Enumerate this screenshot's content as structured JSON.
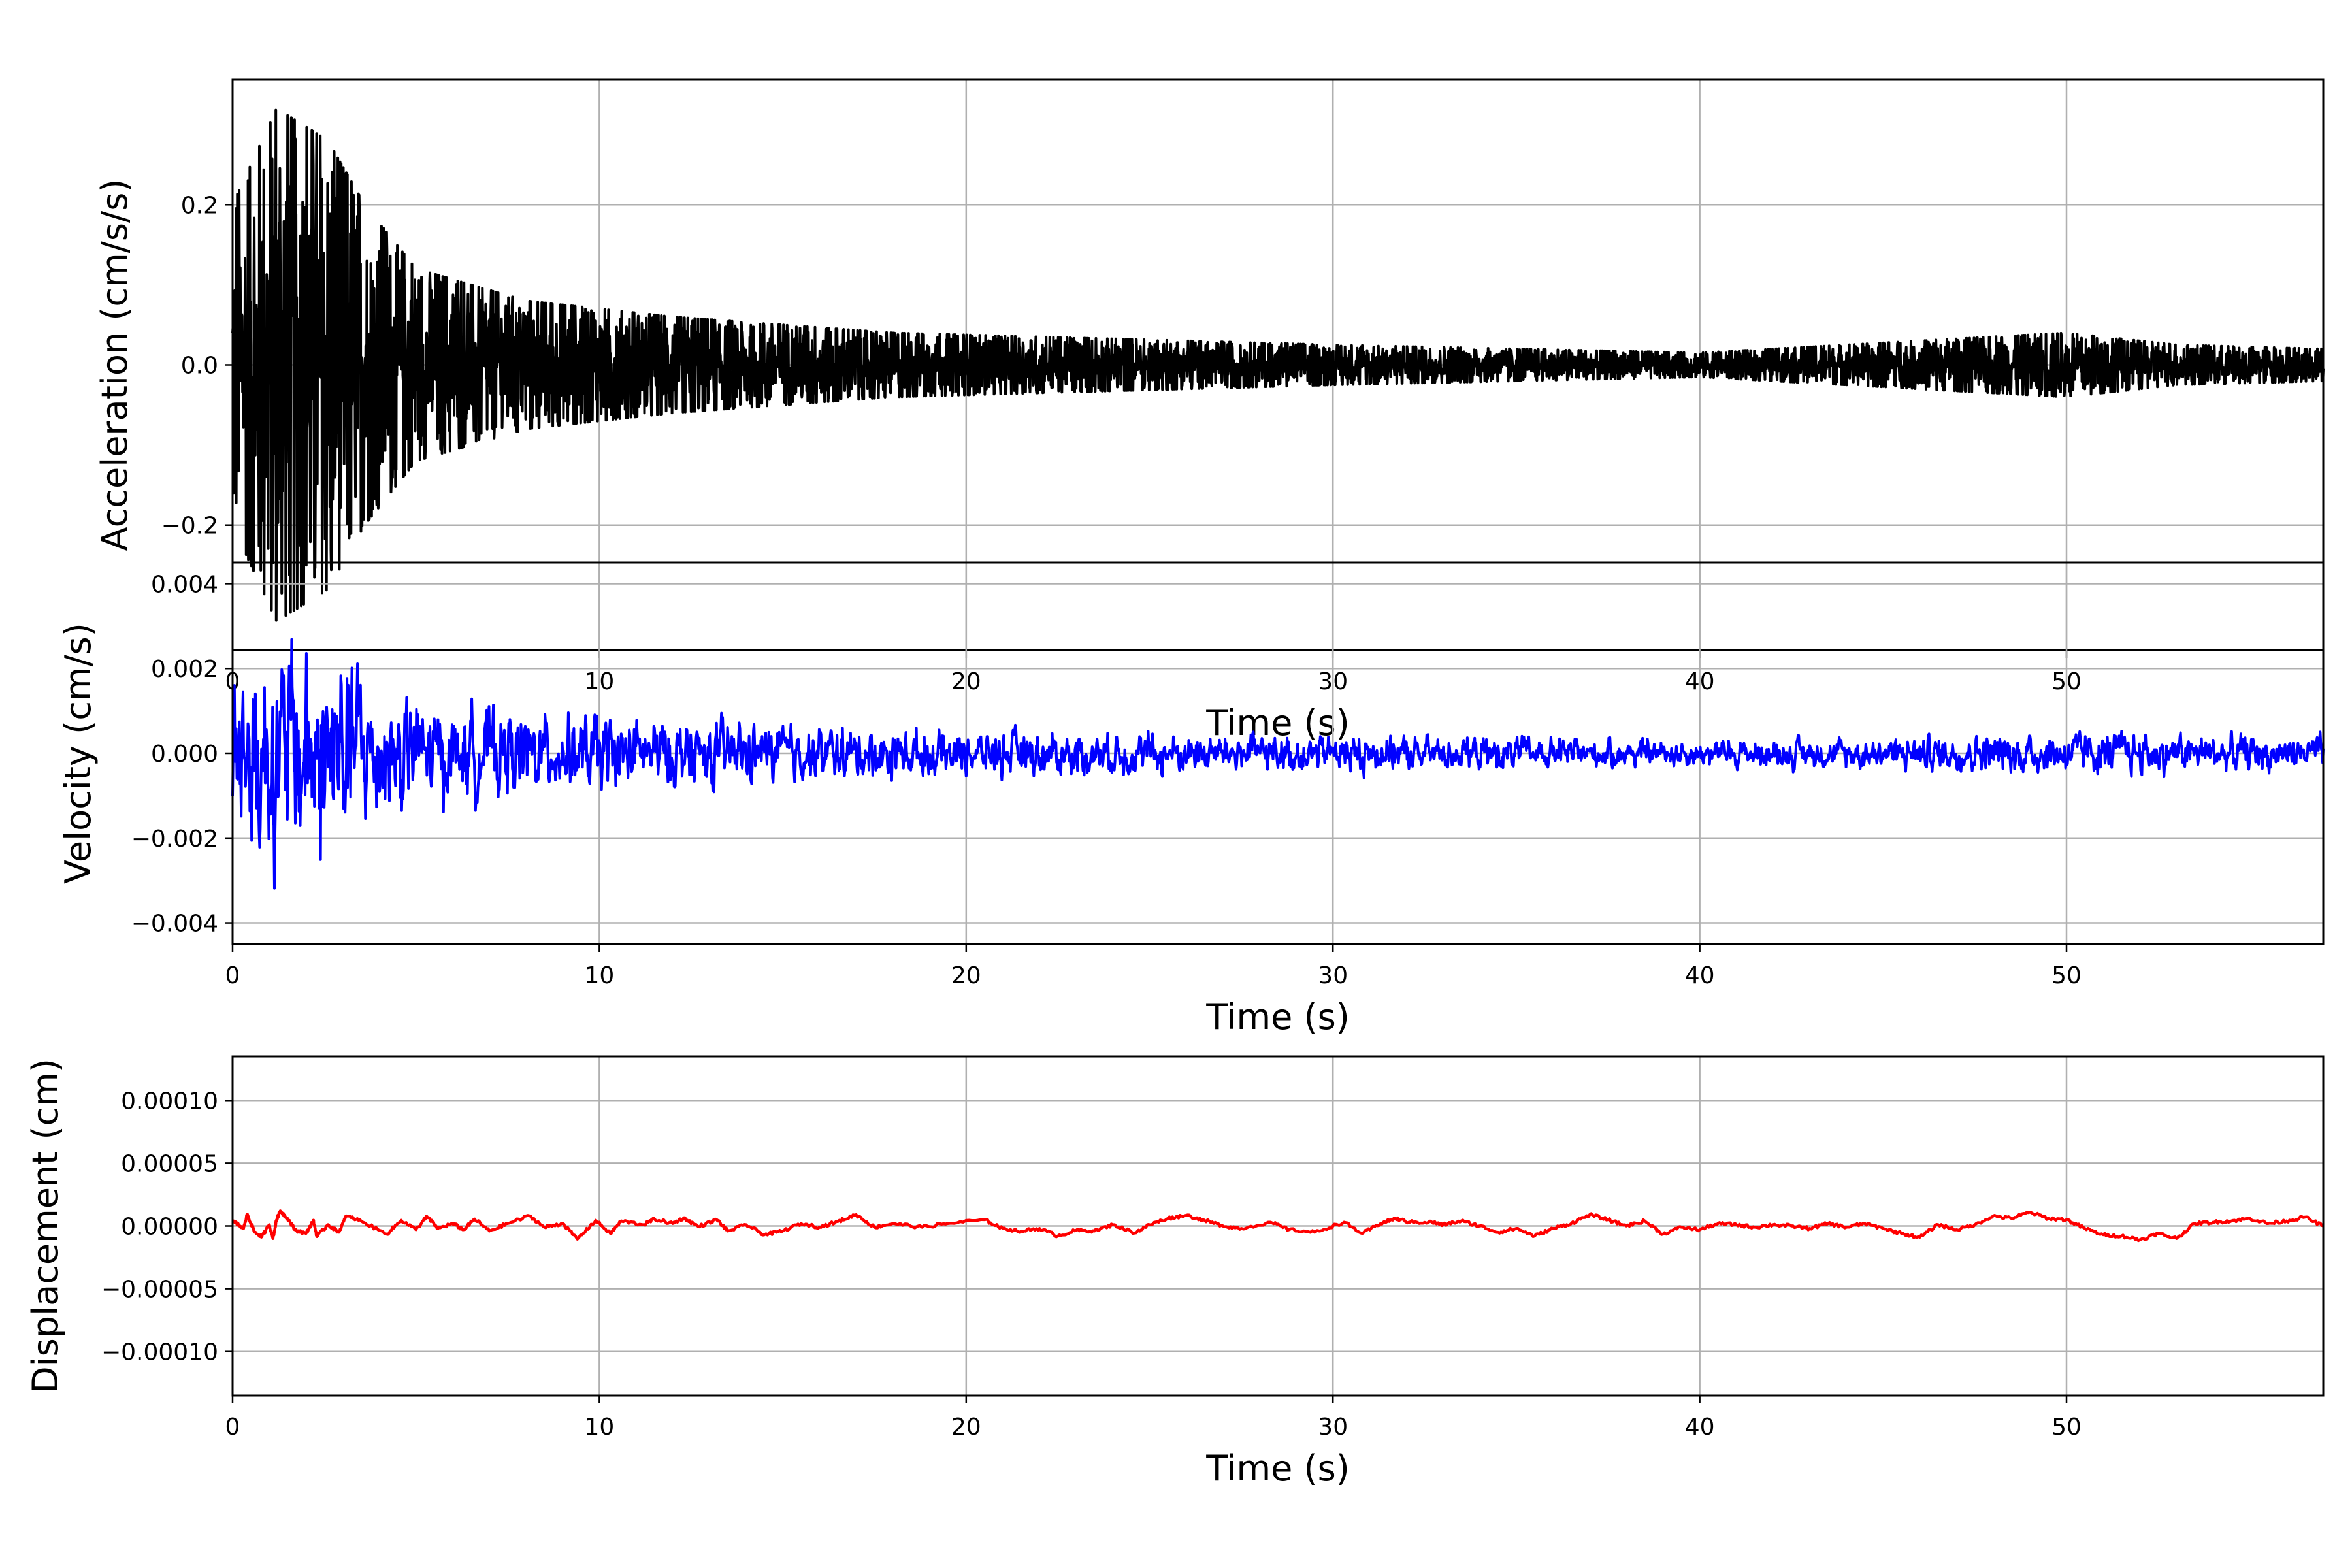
{
  "chart_data": [
    {
      "type": "line",
      "title": "",
      "xlabel": "Time (s)",
      "ylabel": "Acceleration (cm/s/s)",
      "xlim": [
        0,
        57
      ],
      "ylim": [
        -0.356,
        0.356
      ],
      "xticks": [
        0,
        10,
        20,
        30,
        40,
        50
      ],
      "yticks": [
        -0.2,
        0.0,
        0.2
      ],
      "ytick_labels": [
        "−0.2",
        "0.0",
        "0.2"
      ],
      "grid": true,
      "color": "#000000",
      "series_note": "dense noise record; amplitude envelope (time s, peak abs value)",
      "envelope": [
        [
          0,
          0.2
        ],
        [
          1.2,
          0.32
        ],
        [
          2.6,
          0.28
        ],
        [
          3.6,
          0.2
        ],
        [
          5,
          0.12
        ],
        [
          8,
          0.08
        ],
        [
          12,
          0.06
        ],
        [
          18,
          0.04
        ],
        [
          30,
          0.025
        ],
        [
          40,
          0.015
        ],
        [
          46,
          0.03
        ],
        [
          50,
          0.04
        ],
        [
          53,
          0.025
        ],
        [
          57,
          0.02
        ]
      ],
      "peaks": {
        "max": 0.32,
        "max_time": 1.2,
        "min": -0.29,
        "min_time": 2.6
      }
    },
    {
      "type": "line",
      "title": "",
      "xlabel": "Time (s)",
      "ylabel": "Velocity (cm/s)",
      "xlim": [
        0,
        57
      ],
      "ylim": [
        -0.0045,
        0.0045
      ],
      "xticks": [
        0,
        10,
        20,
        30,
        40,
        50
      ],
      "yticks": [
        -0.004,
        -0.002,
        0.0,
        0.002,
        0.004
      ],
      "ytick_labels": [
        "−0.004",
        "−0.002",
        "0.000",
        "0.002",
        "0.004"
      ],
      "grid": true,
      "color": "#0000ff",
      "series_note": "dense oscillatory record; amplitude envelope (time s, peak abs value)",
      "envelope": [
        [
          0,
          0.003
        ],
        [
          0.4,
          0.0037
        ],
        [
          1.2,
          0.0035
        ],
        [
          2.6,
          0.004
        ],
        [
          4,
          0.0022
        ],
        [
          6,
          0.0014
        ],
        [
          10,
          0.0012
        ],
        [
          15,
          0.0009
        ],
        [
          20,
          0.0007
        ],
        [
          30,
          0.0006
        ],
        [
          40,
          0.0004
        ],
        [
          45,
          0.0005
        ],
        [
          50,
          0.0007
        ],
        [
          57,
          0.0005
        ]
      ],
      "peaks": {
        "max": 0.0037,
        "max_time": 0.3,
        "min": -0.0041,
        "min_time": 2.6
      }
    },
    {
      "type": "line",
      "title": "",
      "xlabel": "Time (s)",
      "ylabel": "Displacement (cm)",
      "xlim": [
        0,
        57
      ],
      "ylim": [
        -0.000135,
        0.000135
      ],
      "xticks": [
        0,
        10,
        20,
        30,
        40,
        50
      ],
      "yticks": [
        -0.0001,
        -5e-05,
        0.0,
        5e-05,
        0.0001
      ],
      "ytick_labels": [
        "−0.00010",
        "−0.00005",
        "0.00000",
        "0.00005",
        "0.00010"
      ],
      "grid": true,
      "color": "#ff0000",
      "y_scale": 1e-05,
      "points": [
        [
          0,
          0.4
        ],
        [
          0.3,
          -0.2
        ],
        [
          0.4,
          0.95
        ],
        [
          0.6,
          -0.5
        ],
        [
          0.8,
          -0.85
        ],
        [
          1.0,
          0.1
        ],
        [
          1.1,
          -1.0
        ],
        [
          1.2,
          0.5
        ],
        [
          1.3,
          1.2
        ],
        [
          1.5,
          0.6
        ],
        [
          1.7,
          -0.3
        ],
        [
          2.0,
          -0.6
        ],
        [
          2.2,
          0.45
        ],
        [
          2.3,
          -0.85
        ],
        [
          2.6,
          0.1
        ],
        [
          2.9,
          -0.5
        ],
        [
          3.1,
          0.8
        ],
        [
          3.5,
          0.4
        ],
        [
          4.2,
          -0.65
        ],
        [
          4.6,
          0.45
        ],
        [
          5.0,
          -0.3
        ],
        [
          5.3,
          0.75
        ],
        [
          5.6,
          -0.2
        ],
        [
          6.0,
          0.2
        ],
        [
          6.3,
          -0.3
        ],
        [
          6.6,
          0.55
        ],
        [
          7.0,
          -0.4
        ],
        [
          7.5,
          0.2
        ],
        [
          8.1,
          0.8
        ],
        [
          8.5,
          -0.1
        ],
        [
          9.0,
          0.2
        ],
        [
          9.4,
          -1.05
        ],
        [
          9.9,
          0.45
        ],
        [
          10.3,
          -0.6
        ],
        [
          10.6,
          0.4
        ],
        [
          11.2,
          0.1
        ],
        [
          11.5,
          0.55
        ],
        [
          12.0,
          0.2
        ],
        [
          12.3,
          0.65
        ],
        [
          12.7,
          -0.05
        ],
        [
          13.2,
          0.5
        ],
        [
          13.5,
          -0.4
        ],
        [
          14.0,
          0.1
        ],
        [
          14.5,
          -0.7
        ],
        [
          15.0,
          -0.4
        ],
        [
          15.5,
          0.2
        ],
        [
          16.0,
          -0.1
        ],
        [
          16.5,
          0.35
        ],
        [
          17.0,
          0.9
        ],
        [
          17.5,
          -0.1
        ],
        [
          18.0,
          0.2
        ],
        [
          18.8,
          -0.1
        ],
        [
          19.5,
          0.2
        ],
        [
          20.5,
          0.5
        ],
        [
          21.0,
          -0.2
        ],
        [
          21.5,
          -0.4
        ],
        [
          22.0,
          -0.2
        ],
        [
          22.5,
          -0.8
        ],
        [
          23.0,
          -0.35
        ],
        [
          23.5,
          -0.4
        ],
        [
          24.0,
          0.1
        ],
        [
          24.6,
          -0.55
        ],
        [
          25.0,
          0.1
        ],
        [
          25.5,
          0.6
        ],
        [
          26.0,
          0.85
        ],
        [
          26.5,
          0.45
        ],
        [
          27.0,
          0.0
        ],
        [
          27.5,
          -0.2
        ],
        [
          28.3,
          0.3
        ],
        [
          28.8,
          -0.3
        ],
        [
          29.5,
          -0.5
        ],
        [
          30.3,
          0.3
        ],
        [
          30.8,
          -0.6
        ],
        [
          31.3,
          0.2
        ],
        [
          31.7,
          0.6
        ],
        [
          32.1,
          0.3
        ],
        [
          32.7,
          0.3
        ],
        [
          33.0,
          0.1
        ],
        [
          33.5,
          0.4
        ],
        [
          34.0,
          0.0
        ],
        [
          34.5,
          -0.5
        ],
        [
          35.0,
          -0.2
        ],
        [
          35.5,
          -0.8
        ],
        [
          36.0,
          -0.2
        ],
        [
          36.5,
          0.2
        ],
        [
          37.0,
          0.9
        ],
        [
          37.5,
          0.5
        ],
        [
          38.0,
          0.0
        ],
        [
          38.5,
          0.4
        ],
        [
          39.0,
          -0.65
        ],
        [
          39.5,
          -0.1
        ],
        [
          40.0,
          -0.3
        ],
        [
          40.5,
          0.2
        ],
        [
          41.0,
          0.1
        ],
        [
          41.5,
          -0.1
        ],
        [
          42.0,
          0.1
        ],
        [
          42.5,
          0.0
        ],
        [
          43.0,
          -0.2
        ],
        [
          43.5,
          0.2
        ],
        [
          44.0,
          -0.1
        ],
        [
          44.5,
          0.2
        ],
        [
          45.0,
          -0.2
        ],
        [
          45.5,
          -0.6
        ],
        [
          46.0,
          -0.9
        ],
        [
          46.5,
          0.1
        ],
        [
          47.0,
          -0.3
        ],
        [
          47.5,
          0.1
        ],
        [
          48.0,
          0.8
        ],
        [
          48.5,
          0.6
        ],
        [
          49.0,
          1.1
        ],
        [
          49.5,
          0.6
        ],
        [
          50.0,
          0.5
        ],
        [
          50.5,
          -0.2
        ],
        [
          51.0,
          -0.7
        ],
        [
          51.5,
          -0.8
        ],
        [
          52.0,
          -1.1
        ],
        [
          52.5,
          -0.6
        ],
        [
          53.0,
          -1.0
        ],
        [
          53.5,
          0.2
        ],
        [
          54.0,
          0.3
        ],
        [
          54.5,
          0.4
        ],
        [
          55.0,
          0.6
        ],
        [
          55.5,
          0.2
        ],
        [
          56.0,
          0.4
        ],
        [
          56.5,
          0.7
        ],
        [
          57.0,
          0.0
        ]
      ]
    }
  ]
}
